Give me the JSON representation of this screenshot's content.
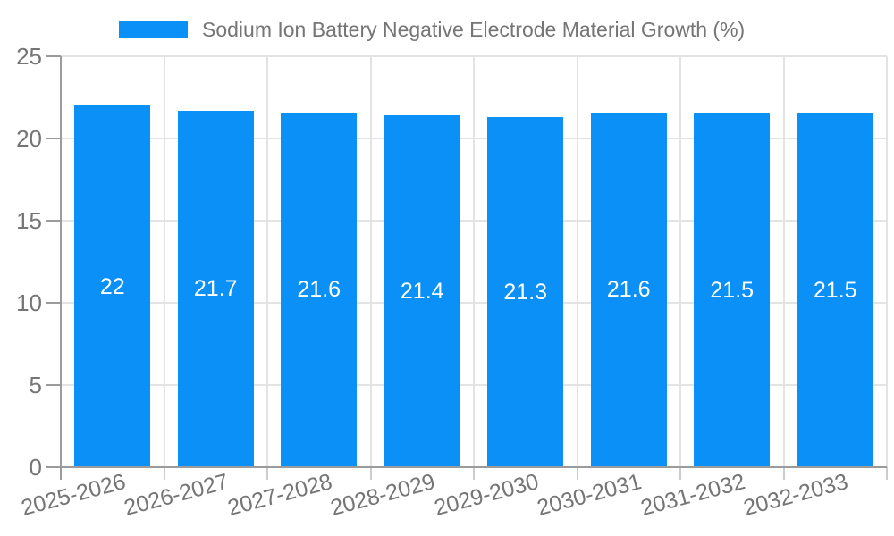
{
  "legend": {
    "label": "Sodium Ion Battery Negative Electrode Material Growth (%)"
  },
  "chart_data": {
    "type": "bar",
    "title": "Sodium Ion Battery Negative Electrode Material Growth (%)",
    "categories": [
      "2025-2026",
      "2026-2027",
      "2027-2028",
      "2028-2029",
      "2029-2030",
      "2030-2031",
      "2031-2032",
      "2032-2033"
    ],
    "values": [
      22,
      21.7,
      21.6,
      21.4,
      21.3,
      21.6,
      21.5,
      21.5
    ],
    "bar_labels": [
      "22",
      "21.7",
      "21.6",
      "21.4",
      "21.3",
      "21.6",
      "21.5",
      "21.5"
    ],
    "xlabel": "",
    "ylabel": "",
    "ylim": [
      0,
      25
    ],
    "yticks": [
      0,
      5,
      10,
      15,
      20,
      25
    ],
    "grid": true,
    "legend_position": "top",
    "colors": {
      "bar": "#0a90f6",
      "bar_label": "#ffffff",
      "axis_text": "#757575",
      "grid_line": "#e3e3e3",
      "axis_line": "#9b9b9b",
      "minor_tick": "#cccccc"
    }
  }
}
